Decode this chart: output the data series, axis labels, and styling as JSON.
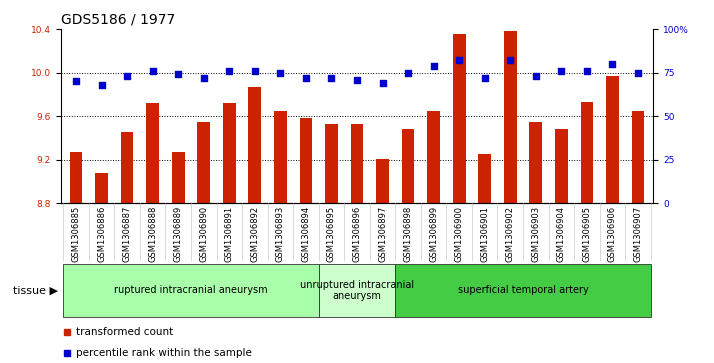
{
  "title": "GDS5186 / 1977",
  "samples": [
    "GSM1306885",
    "GSM1306886",
    "GSM1306887",
    "GSM1306888",
    "GSM1306889",
    "GSM1306890",
    "GSM1306891",
    "GSM1306892",
    "GSM1306893",
    "GSM1306894",
    "GSM1306895",
    "GSM1306896",
    "GSM1306897",
    "GSM1306898",
    "GSM1306899",
    "GSM1306900",
    "GSM1306901",
    "GSM1306902",
    "GSM1306903",
    "GSM1306904",
    "GSM1306905",
    "GSM1306906",
    "GSM1306907"
  ],
  "bar_values": [
    9.27,
    9.08,
    9.45,
    9.72,
    9.27,
    9.55,
    9.72,
    9.87,
    9.65,
    9.58,
    9.53,
    9.53,
    9.21,
    9.48,
    9.65,
    10.35,
    9.25,
    10.38,
    9.55,
    9.48,
    9.73,
    9.97,
    9.65
  ],
  "percentile_values": [
    70,
    68,
    73,
    76,
    74,
    72,
    76,
    76,
    75,
    72,
    72,
    71,
    69,
    75,
    79,
    82,
    72,
    82,
    73,
    76,
    76,
    80,
    75
  ],
  "bar_color": "#cc2200",
  "percentile_color": "#0000cc",
  "ylim_left": [
    8.8,
    10.4
  ],
  "ylim_right": [
    0,
    100
  ],
  "yticks_left": [
    8.8,
    9.2,
    9.6,
    10.0,
    10.4
  ],
  "yticks_right": [
    0,
    25,
    50,
    75,
    100
  ],
  "ytick_labels_right": [
    "0",
    "25",
    "50",
    "75",
    "100%"
  ],
  "groups": [
    {
      "label": "ruptured intracranial aneurysm",
      "start": 0,
      "end": 10,
      "color": "#aaffaa"
    },
    {
      "label": "unruptured intracranial\naneurysm",
      "start": 10,
      "end": 13,
      "color": "#ccffcc"
    },
    {
      "label": "superficial temporal artery",
      "start": 13,
      "end": 23,
      "color": "#44cc44"
    }
  ],
  "tissue_label": "tissue",
  "legend_bar_label": "transformed count",
  "legend_dot_label": "percentile rank within the sample",
  "background_color": "#d8d8d8",
  "plot_bg_color": "#ffffff",
  "title_fontsize": 10,
  "tick_fontsize": 6.5,
  "bar_bottom": 8.8
}
